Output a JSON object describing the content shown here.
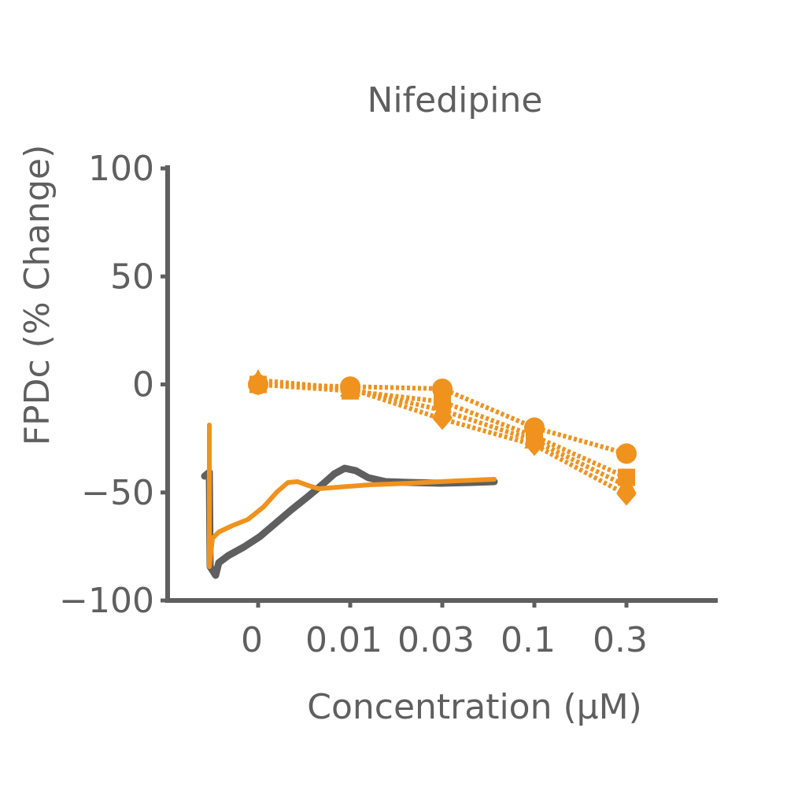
{
  "chart_data": {
    "type": "line",
    "title": "Nifedipine",
    "xlabel": "Concentration (µM)",
    "ylabel": "FPDc (% Change)",
    "categories": [
      "0",
      "0.01",
      "0.03",
      "0.1",
      "0.3"
    ],
    "ylim": [
      -100,
      100
    ],
    "yticks": [
      "100",
      "50",
      "0",
      "−50",
      "−100"
    ],
    "ytick_values": [
      100,
      50,
      0,
      -50,
      -100
    ],
    "grid": false,
    "legend": "none",
    "series": [
      {
        "marker": "circle",
        "values": [
          0,
          -1,
          -2,
          -20,
          -32
        ]
      },
      {
        "marker": "square",
        "values": [
          0,
          -3,
          -8,
          -24,
          -43
        ]
      },
      {
        "marker": "triangle-up",
        "values": [
          2,
          -2,
          -12,
          -26,
          -47
        ]
      },
      {
        "marker": "diamond",
        "values": [
          0,
          -2,
          -16,
          -28,
          -51
        ]
      }
    ],
    "colors": {
      "series": "#f0921e",
      "axis": "#5f5f5f",
      "trace_dark": "#5f5f5f",
      "trace_orange": "#f0921e"
    }
  }
}
